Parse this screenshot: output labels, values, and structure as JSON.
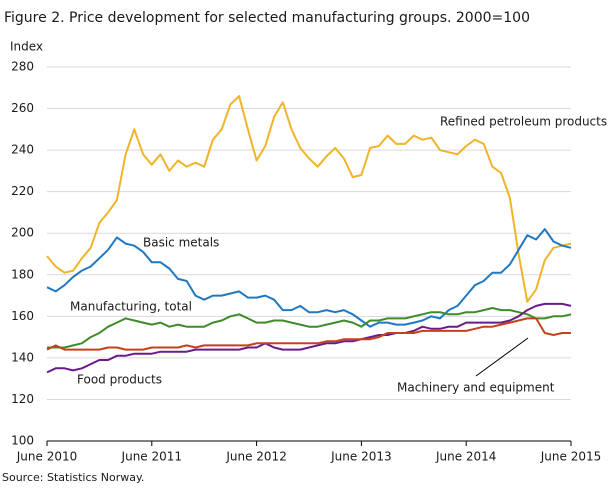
{
  "chart_data": {
    "type": "line",
    "title": "Figure 2. Price development for selected manufacturing groups. 2000=100",
    "y_label": "Index",
    "source": "Source: Statistics Norway.",
    "categories": [
      "June 2010",
      null,
      null,
      null,
      null,
      null,
      null,
      null,
      null,
      null,
      null,
      null,
      "June 2011",
      null,
      null,
      null,
      null,
      null,
      null,
      null,
      null,
      null,
      null,
      null,
      "June 2012",
      null,
      null,
      null,
      null,
      null,
      null,
      null,
      null,
      null,
      null,
      null,
      "June 2013",
      null,
      null,
      null,
      null,
      null,
      null,
      null,
      null,
      null,
      null,
      null,
      "June 2014",
      null,
      null,
      null,
      null,
      null,
      null,
      null,
      null,
      null,
      null,
      null,
      "June 2015"
    ],
    "ylim": [
      100,
      280
    ],
    "yticks": [
      100,
      120,
      140,
      160,
      180,
      200,
      220,
      240,
      260,
      280
    ],
    "grid": true,
    "series": [
      {
        "name": "Refined petroleum products",
        "color": "#f0b429",
        "values": [
          189,
          184,
          181,
          182,
          188,
          193,
          205,
          210,
          216,
          238,
          250,
          238,
          233,
          238,
          230,
          235,
          232,
          234,
          232,
          245,
          250,
          262,
          266,
          250,
          235,
          242,
          256,
          263,
          250,
          241,
          236,
          232,
          237,
          241,
          236,
          227,
          228,
          241,
          242,
          247,
          243,
          243,
          247,
          245,
          246,
          240,
          239,
          238,
          242,
          245,
          243,
          232,
          229,
          217,
          190,
          167,
          173,
          187,
          193,
          194,
          195
        ]
      },
      {
        "name": "Basic metals",
        "color": "#1f78c1",
        "values": [
          174,
          172,
          175,
          179,
          182,
          184,
          188,
          192,
          198,
          195,
          194,
          191,
          186,
          186,
          183,
          178,
          177,
          170,
          168,
          170,
          170,
          171,
          172,
          169,
          169,
          170,
          168,
          163,
          163,
          165,
          162,
          162,
          163,
          162,
          163,
          161,
          158,
          155,
          157,
          157,
          156,
          156,
          157,
          158,
          160,
          159,
          163,
          165,
          170,
          175,
          177,
          181,
          181,
          185,
          192,
          199,
          197,
          202,
          196,
          194,
          193
        ]
      },
      {
        "name": "Manufacturing,  total",
        "color": "#3e8b2a",
        "values": [
          145,
          145,
          145,
          146,
          147,
          150,
          152,
          155,
          157,
          159,
          158,
          157,
          156,
          157,
          155,
          156,
          155,
          155,
          155,
          157,
          158,
          160,
          161,
          159,
          157,
          157,
          158,
          158,
          157,
          156,
          155,
          155,
          156,
          157,
          158,
          157,
          155,
          158,
          158,
          159,
          159,
          159,
          160,
          161,
          162,
          162,
          161,
          161,
          162,
          162,
          163,
          164,
          163,
          163,
          162,
          161,
          159,
          159,
          160,
          160,
          161
        ]
      },
      {
        "name": "Food products",
        "color": "#6a1b8a",
        "values": [
          133,
          135,
          135,
          134,
          135,
          137,
          139,
          139,
          141,
          141,
          142,
          142,
          142,
          143,
          143,
          143,
          143,
          144,
          144,
          144,
          144,
          144,
          144,
          145,
          145,
          147,
          145,
          144,
          144,
          144,
          145,
          146,
          147,
          147,
          148,
          148,
          149,
          150,
          151,
          151,
          152,
          152,
          153,
          155,
          154,
          154,
          155,
          155,
          157,
          157,
          157,
          157,
          157,
          158,
          160,
          163,
          165,
          166,
          166,
          166,
          165
        ]
      },
      {
        "name": "Machinery and equipment",
        "color": "#c5401b",
        "values": [
          144,
          146,
          144,
          144,
          144,
          144,
          144,
          145,
          145,
          144,
          144,
          144,
          145,
          145,
          145,
          145,
          146,
          145,
          146,
          146,
          146,
          146,
          146,
          146,
          147,
          147,
          147,
          147,
          147,
          147,
          147,
          147,
          148,
          148,
          149,
          149,
          149,
          149,
          150,
          152,
          152,
          152,
          152,
          153,
          153,
          153,
          153,
          153,
          153,
          154,
          155,
          155,
          156,
          157,
          158,
          159,
          159,
          152,
          151,
          152,
          152
        ]
      }
    ]
  }
}
